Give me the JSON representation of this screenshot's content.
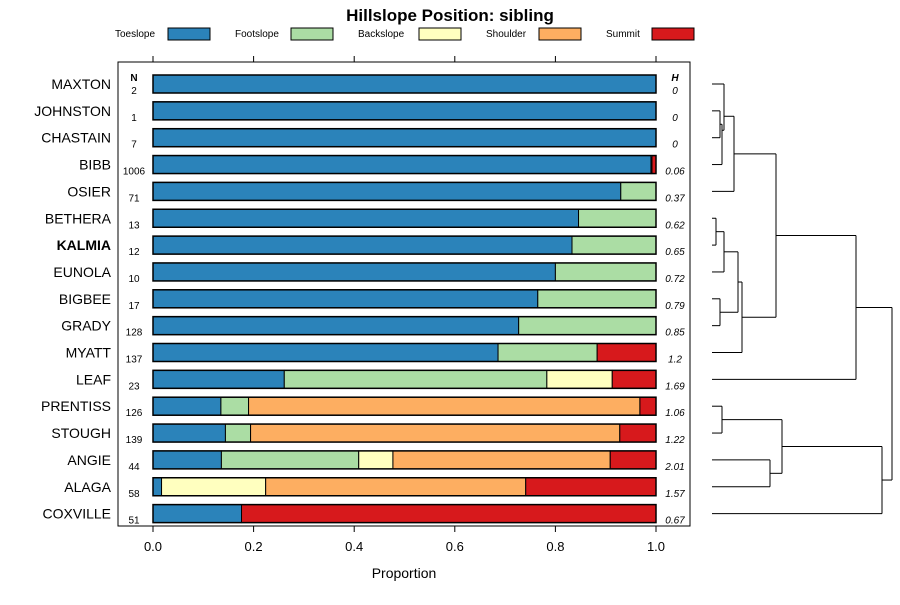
{
  "chart_data": {
    "type": "stacked-bar",
    "orientation": "horizontal",
    "title": "Hillslope Position: sibling",
    "xlabel": "Proportion",
    "xlim": [
      0,
      1
    ],
    "xticks": [
      "0.0",
      "0.2",
      "0.4",
      "0.6",
      "0.8",
      "1.0"
    ],
    "n_header": "N",
    "h_header": "H",
    "highlighted": "KALMIA",
    "legend": [
      {
        "name": "Toeslope",
        "color": "#2b83ba"
      },
      {
        "name": "Footslope",
        "color": "#abdda4"
      },
      {
        "name": "Backslope",
        "color": "#ffffbf"
      },
      {
        "name": "Shoulder",
        "color": "#fdae61"
      },
      {
        "name": "Summit",
        "color": "#d7191c"
      }
    ],
    "rows": [
      {
        "name": "MAXTON",
        "n": "2",
        "h": "0",
        "values": [
          1.0,
          0,
          0,
          0,
          0
        ]
      },
      {
        "name": "JOHNSTON",
        "n": "1",
        "h": "0",
        "values": [
          1.0,
          0,
          0,
          0,
          0
        ]
      },
      {
        "name": "CHASTAIN",
        "n": "7",
        "h": "0",
        "values": [
          1.0,
          0,
          0,
          0,
          0
        ]
      },
      {
        "name": "BIBB",
        "n": "1006",
        "h": "0.06",
        "values": [
          0.99,
          0.002,
          0,
          0,
          0.008
        ]
      },
      {
        "name": "OSIER",
        "n": "71",
        "h": "0.37",
        "values": [
          0.93,
          0.07,
          0,
          0,
          0
        ]
      },
      {
        "name": "BETHERA",
        "n": "13",
        "h": "0.62",
        "values": [
          0.846,
          0.154,
          0,
          0,
          0
        ]
      },
      {
        "name": "KALMIA",
        "n": "12",
        "h": "0.65",
        "values": [
          0.833,
          0.167,
          0,
          0,
          0
        ]
      },
      {
        "name": "EUNOLA",
        "n": "10",
        "h": "0.72",
        "values": [
          0.8,
          0.2,
          0,
          0,
          0
        ]
      },
      {
        "name": "BIGBEE",
        "n": "17",
        "h": "0.79",
        "values": [
          0.765,
          0.235,
          0,
          0,
          0
        ]
      },
      {
        "name": "GRADY",
        "n": "128",
        "h": "0.85",
        "values": [
          0.727,
          0.273,
          0,
          0,
          0
        ]
      },
      {
        "name": "MYATT",
        "n": "137",
        "h": "1.2",
        "values": [
          0.686,
          0.197,
          0,
          0,
          0.117
        ]
      },
      {
        "name": "LEAF",
        "n": "23",
        "h": "1.69",
        "values": [
          0.261,
          0.522,
          0.13,
          0,
          0.087
        ]
      },
      {
        "name": "PRENTISS",
        "n": "126",
        "h": "1.06",
        "values": [
          0.135,
          0.055,
          0,
          0.778,
          0.032
        ]
      },
      {
        "name": "STOUGH",
        "n": "139",
        "h": "1.22",
        "values": [
          0.144,
          0.05,
          0,
          0.734,
          0.072
        ]
      },
      {
        "name": "ANGIE",
        "n": "44",
        "h": "2.01",
        "values": [
          0.136,
          0.273,
          0.068,
          0.432,
          0.091
        ]
      },
      {
        "name": "ALAGA",
        "n": "58",
        "h": "1.57",
        "values": [
          0.017,
          0.0,
          0.207,
          0.517,
          0.259
        ]
      },
      {
        "name": "COXVILLE",
        "n": "51",
        "h": "0.67",
        "values": [
          0.176,
          0,
          0,
          0,
          0.824
        ]
      }
    ]
  }
}
